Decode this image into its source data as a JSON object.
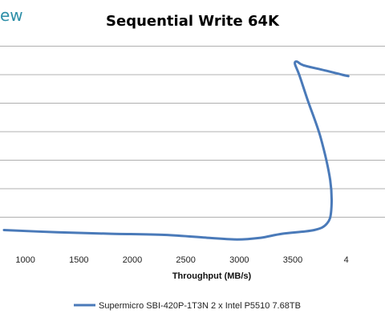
{
  "brand": {
    "logo_fragment": "ew"
  },
  "chart_data": {
    "type": "line",
    "title": "Sequential Write 64K",
    "xlabel": "Throughput (MB/s)",
    "ylabel": "",
    "xlim": [
      800,
      4400
    ],
    "ylim": [
      0,
      8
    ],
    "x_ticks": [
      "1000",
      "1500",
      "2000",
      "2500",
      "3000",
      "3500",
      "4"
    ],
    "x_tick_values": [
      1000,
      1500,
      2000,
      2500,
      3000,
      3500,
      4000
    ],
    "y_gridlines": [
      1,
      2,
      3,
      4,
      5,
      6,
      7
    ],
    "grid": true,
    "legend_position": "bottom",
    "colors": {
      "series": "#4a7ab9"
    },
    "series": [
      {
        "name": "Supermicro SBI-420P-1T3N 2 x Intel P5510 7.68TB",
        "points": [
          {
            "x": 800,
            "y": 0.55
          },
          {
            "x": 1300,
            "y": 0.47
          },
          {
            "x": 1800,
            "y": 0.42
          },
          {
            "x": 2300,
            "y": 0.38
          },
          {
            "x": 2700,
            "y": 0.28
          },
          {
            "x": 2980,
            "y": 0.22
          },
          {
            "x": 3200,
            "y": 0.28
          },
          {
            "x": 3400,
            "y": 0.42
          },
          {
            "x": 3700,
            "y": 0.55
          },
          {
            "x": 3820,
            "y": 0.78
          },
          {
            "x": 3860,
            "y": 1.25
          },
          {
            "x": 3850,
            "y": 2.3
          },
          {
            "x": 3760,
            "y": 3.8
          },
          {
            "x": 3640,
            "y": 5.1
          },
          {
            "x": 3560,
            "y": 6.0
          },
          {
            "x": 3520,
            "y": 6.38
          },
          {
            "x": 3540,
            "y": 6.46
          },
          {
            "x": 3600,
            "y": 6.33
          },
          {
            "x": 3800,
            "y": 6.15
          },
          {
            "x": 3960,
            "y": 6.0
          },
          {
            "x": 4020,
            "y": 5.95
          }
        ]
      }
    ]
  }
}
